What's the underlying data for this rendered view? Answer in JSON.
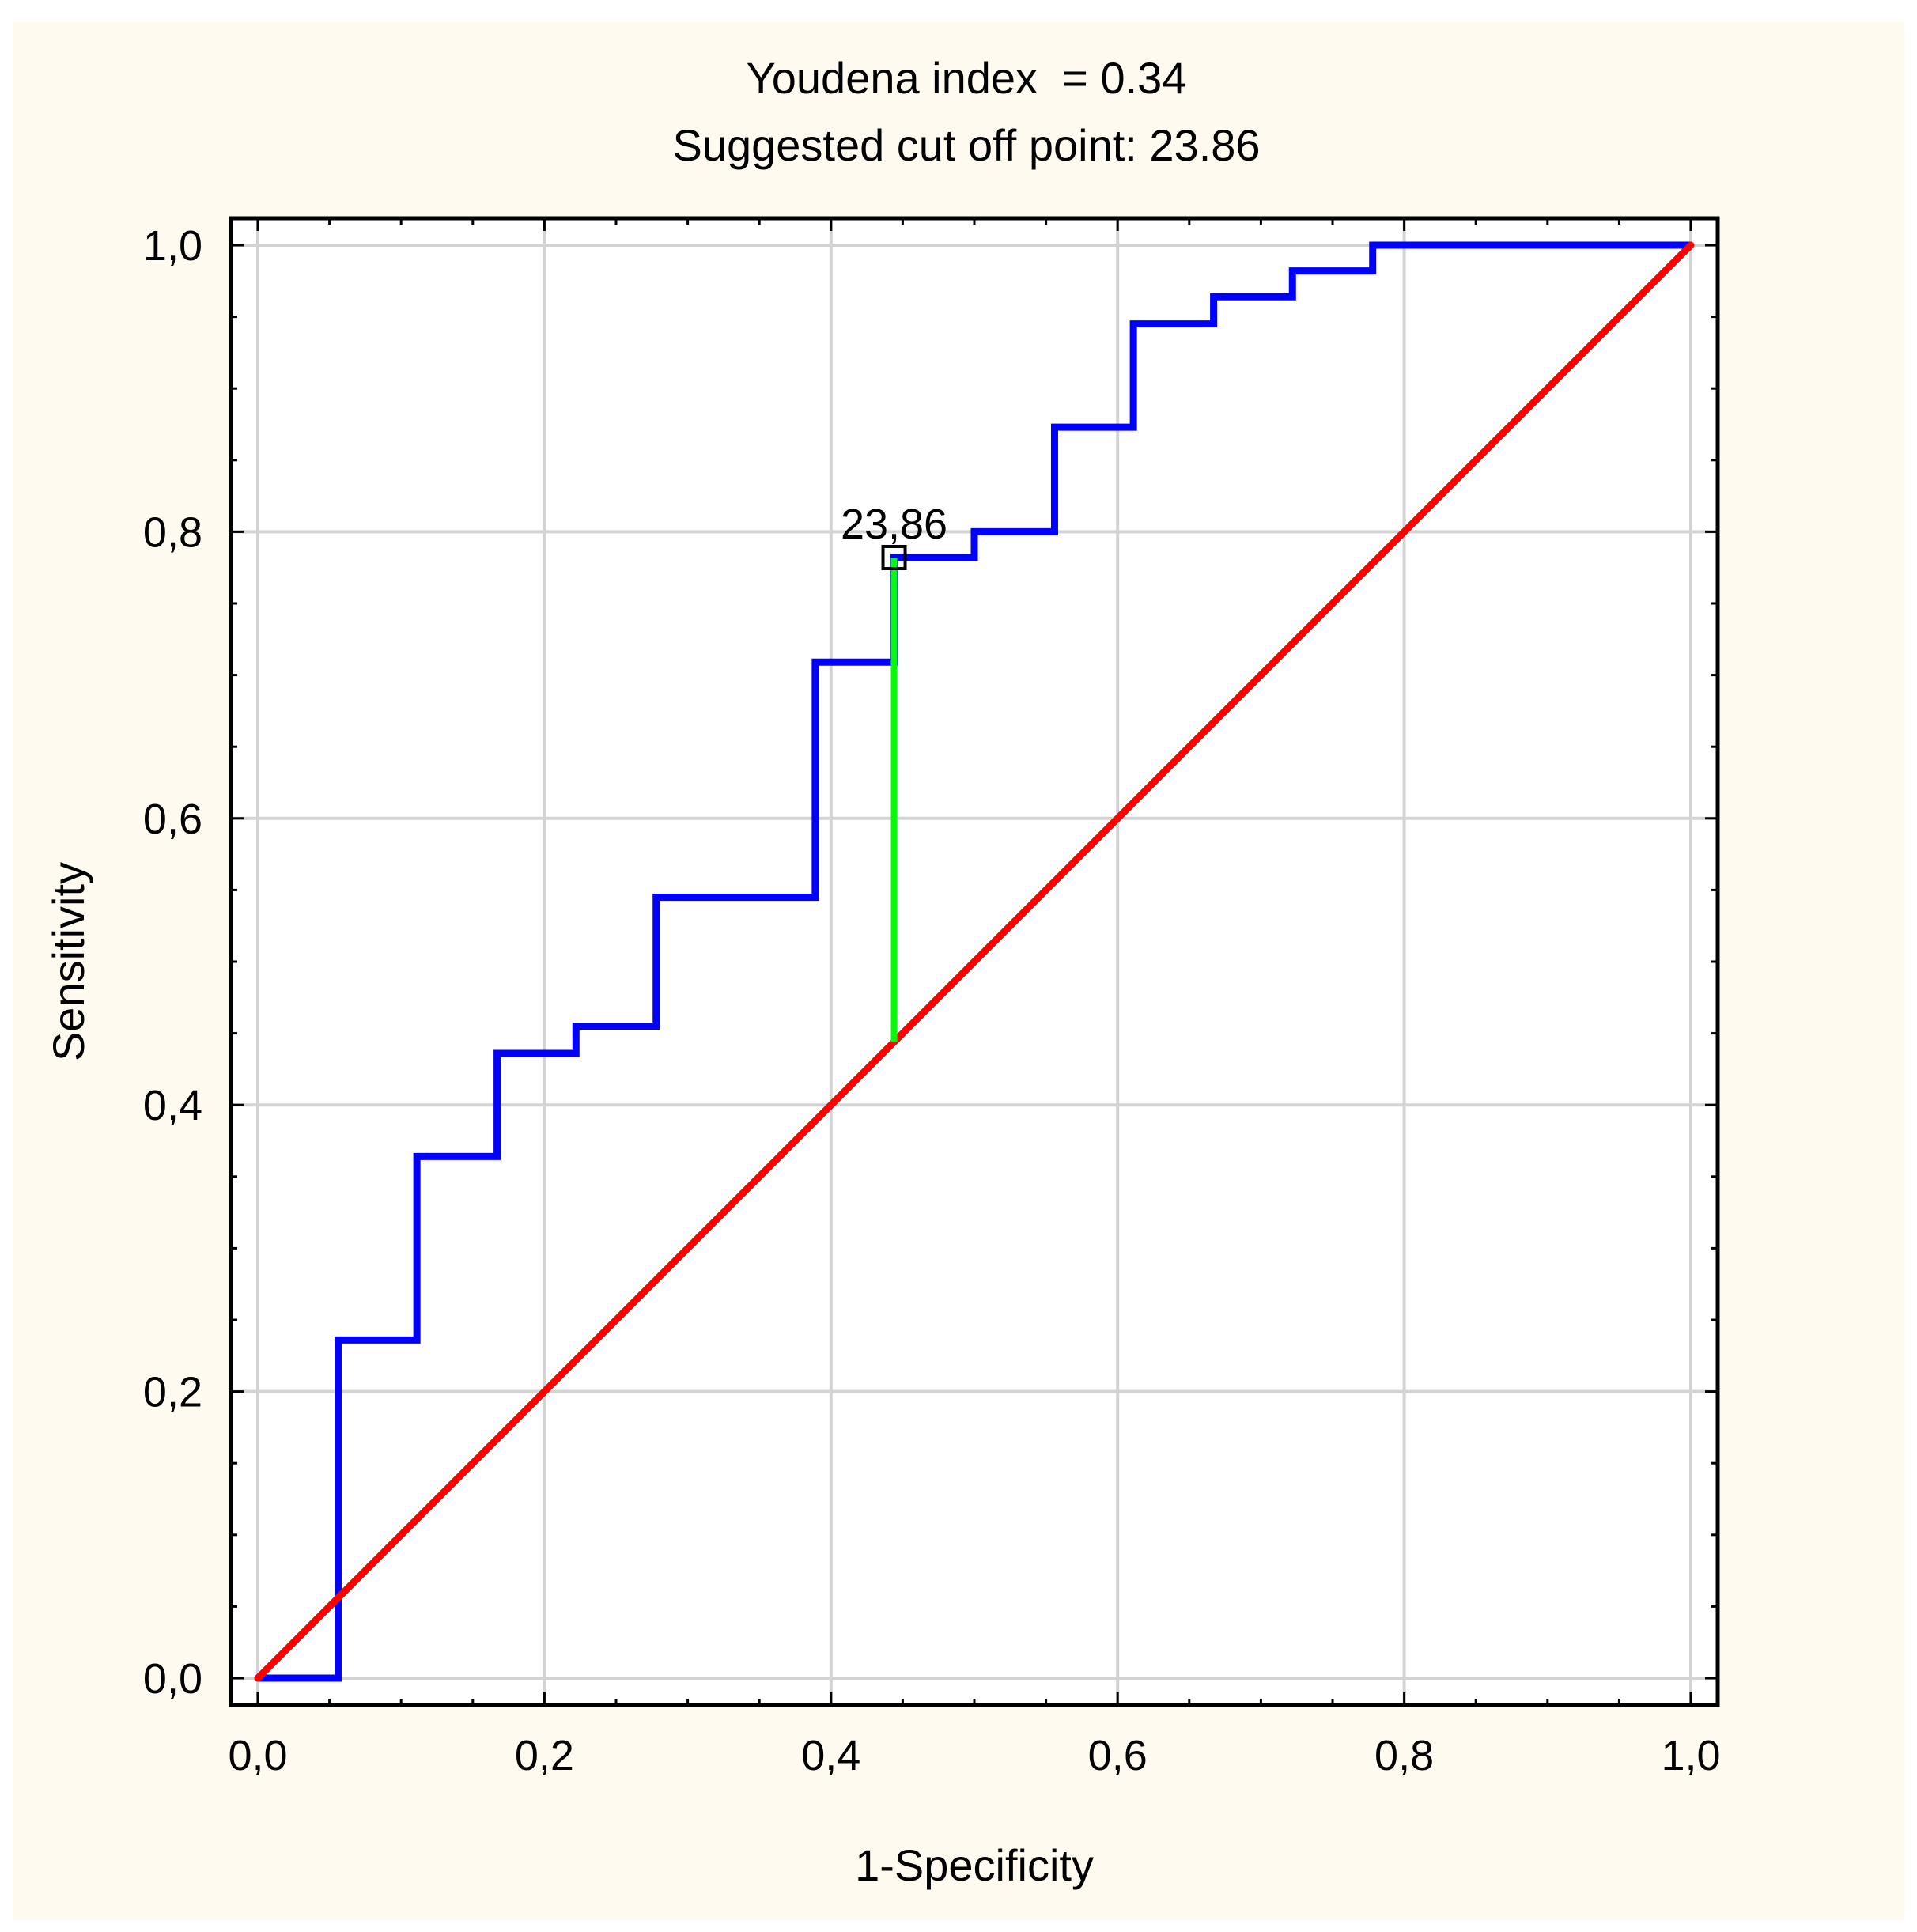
{
  "chart_data": {
    "type": "line",
    "title": "Youdena index  = 0.34",
    "subtitle": "Suggested cut off point: 23.86",
    "xlabel": "1-Specificity",
    "ylabel": "Sensitivity",
    "xlim": [
      0,
      1
    ],
    "ylim": [
      0,
      1
    ],
    "grid": true,
    "x_ticks": [
      "0,0",
      "0,2",
      "0,4",
      "0,6",
      "0,8",
      "1,0"
    ],
    "y_ticks": [
      "0,0",
      "0,2",
      "0,4",
      "0,6",
      "0,8",
      "1,0"
    ],
    "tick_values": [
      0,
      0.2,
      0.4,
      0.6,
      0.8,
      1.0
    ],
    "series": [
      {
        "name": "",
        "kind": "roc-step",
        "color": "#0000ff",
        "points": [
          [
            0.0,
            0.0
          ],
          [
            0.056,
            0.0
          ],
          [
            0.056,
            0.236
          ],
          [
            0.111,
            0.236
          ],
          [
            0.111,
            0.364
          ],
          [
            0.167,
            0.364
          ],
          [
            0.167,
            0.436
          ],
          [
            0.222,
            0.436
          ],
          [
            0.222,
            0.455
          ],
          [
            0.278,
            0.455
          ],
          [
            0.278,
            0.545
          ],
          [
            0.389,
            0.545
          ],
          [
            0.389,
            0.709
          ],
          [
            0.444,
            0.709
          ],
          [
            0.444,
            0.782
          ],
          [
            0.5,
            0.782
          ],
          [
            0.5,
            0.8
          ],
          [
            0.556,
            0.8
          ],
          [
            0.556,
            0.873
          ],
          [
            0.611,
            0.873
          ],
          [
            0.611,
            0.945
          ],
          [
            0.667,
            0.945
          ],
          [
            0.667,
            0.964
          ],
          [
            0.722,
            0.964
          ],
          [
            0.722,
            0.982
          ],
          [
            0.778,
            0.982
          ],
          [
            0.778,
            1.0
          ],
          [
            1.0,
            1.0
          ]
        ]
      },
      {
        "name": "",
        "kind": "reference-diagonal",
        "color": "#ff0000",
        "points": [
          [
            0,
            0
          ],
          [
            1,
            1
          ]
        ]
      }
    ],
    "youden_line": {
      "color": "#00ff00",
      "x": 0.444,
      "y_from": 0.444,
      "y_to": 0.782
    },
    "cutoff_point": {
      "x": 0.444,
      "y": 0.782,
      "label": "23,86"
    }
  }
}
